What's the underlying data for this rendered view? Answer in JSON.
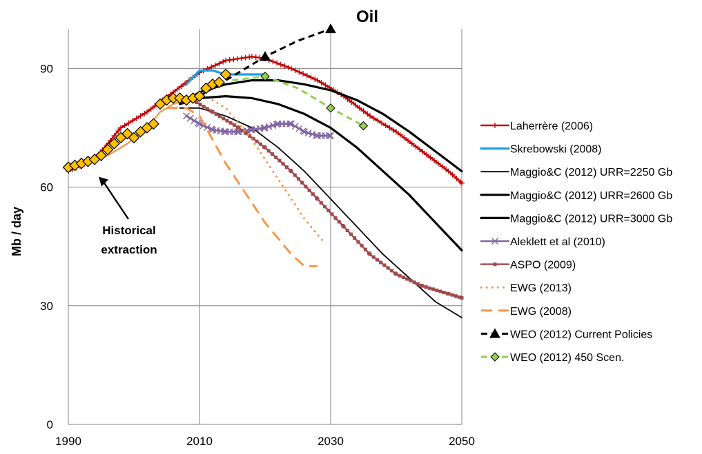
{
  "chart_data": {
    "type": "line",
    "title": "Oil",
    "xlabel": "",
    "ylabel": "Mb / day",
    "xlim": [
      1990,
      2050
    ],
    "ylim": [
      0,
      100
    ],
    "x_ticks": [
      1990,
      2010,
      2030,
      2050
    ],
    "y_ticks": [
      0,
      30,
      60,
      90
    ],
    "grid": "major, both axes",
    "legend_position": "right",
    "annotation": {
      "lines": [
        "Historical",
        "extraction"
      ],
      "target": [
        1994,
        64
      ]
    },
    "series": [
      {
        "name": "Laherrère (2006)",
        "color": "#c00000",
        "style": "solid-plus",
        "x": [
          1990,
          1994,
          1998,
          2002,
          2006,
          2010,
          2014,
          2018,
          2020,
          2024,
          2028,
          2032,
          2036,
          2040,
          2044,
          2048,
          2050
        ],
        "y": [
          64,
          67,
          75,
          79,
          84,
          89,
          92,
          93,
          92.5,
          90,
          87,
          83,
          78,
          74,
          69,
          64,
          61
        ]
      },
      {
        "name": "Skrebowski (2008)",
        "color": "#1ba1e2",
        "style": "solid-thick",
        "x": [
          2008,
          2010,
          2012,
          2014,
          2016,
          2018,
          2020
        ],
        "y": [
          86,
          89.5,
          89.5,
          88.5,
          88.5,
          88.5,
          88.5
        ]
      },
      {
        "name": "Maggio&C (2012) URR=2250 Gb",
        "color": "#000000",
        "style": "solid-thin",
        "x": [
          2007,
          2010,
          2014,
          2018,
          2022,
          2026,
          2030,
          2034,
          2038,
          2042,
          2046,
          2050
        ],
        "y": [
          80,
          80,
          78,
          75,
          70,
          64,
          57,
          50,
          43,
          37,
          31,
          27
        ]
      },
      {
        "name": "Maggio&C (2012) URR=2600 Gb",
        "color": "#000000",
        "style": "solid-thick",
        "x": [
          2007,
          2010,
          2014,
          2018,
          2022,
          2026,
          2030,
          2034,
          2038,
          2042,
          2046,
          2050
        ],
        "y": [
          81,
          82.5,
          83,
          82.5,
          81,
          78.5,
          75,
          70,
          64,
          58,
          51,
          44
        ]
      },
      {
        "name": "Maggio&C (2012) URR=3000 Gb",
        "color": "#000000",
        "style": "solid-thick",
        "x": [
          2008,
          2010,
          2014,
          2018,
          2022,
          2026,
          2030,
          2034,
          2038,
          2042,
          2046,
          2050
        ],
        "y": [
          82,
          84,
          86,
          87,
          87,
          86,
          84.5,
          82,
          78.5,
          74,
          69,
          64
        ]
      },
      {
        "name": "Aleklett et al (2010)",
        "color": "#8064a2",
        "style": "solid-x",
        "x": [
          2008,
          2010,
          2012,
          2014,
          2016,
          2018,
          2020,
          2022,
          2024,
          2026,
          2028,
          2030
        ],
        "y": [
          78,
          76,
          74.5,
          74,
          74,
          74.5,
          75,
          76,
          76,
          74,
          73,
          73
        ]
      },
      {
        "name": "ASPO (2009)",
        "color": "#a0484b",
        "style": "solid-square",
        "x": [
          2009,
          2012,
          2016,
          2020,
          2024,
          2028,
          2032,
          2036,
          2040,
          2044,
          2048,
          2050
        ],
        "y": [
          82,
          79,
          75,
          70,
          64,
          57,
          50,
          43,
          38,
          35,
          33,
          32
        ]
      },
      {
        "name": "EWG (2013)",
        "color": "#f79646",
        "style": "dotted",
        "x": [
          2012,
          2014,
          2016,
          2018,
          2020,
          2022,
          2024,
          2026,
          2028,
          2029
        ],
        "y": [
          82,
          80,
          76,
          72,
          67,
          62,
          57,
          52,
          48,
          46
        ]
      },
      {
        "name": "EWG (2008)",
        "color": "#f79646",
        "style": "dashed-long",
        "x": [
          2005,
          2008,
          2010,
          2012,
          2014,
          2016,
          2018,
          2020,
          2022,
          2024,
          2026,
          2028
        ],
        "y": [
          80,
          80,
          78,
          72,
          66,
          61,
          56,
          51,
          47,
          43,
          40,
          40
        ]
      },
      {
        "name": "WEO (2012) Current Policies",
        "color": "#000000",
        "style": "dashed-triangle",
        "x": [
          2010,
          2015,
          2020,
          2025,
          2030
        ],
        "y": [
          83,
          88,
          93,
          97,
          100
        ],
        "markers_x": [
          2020,
          2030
        ],
        "markers_y": [
          93,
          100
        ]
      },
      {
        "name": "WEO (2012) 450 Scen.",
        "color": "#92d050",
        "style": "dashed-diamond",
        "x": [
          2015,
          2020,
          2025,
          2030,
          2035
        ],
        "y": [
          87,
          88,
          85,
          80,
          75.5
        ],
        "markers_x": [
          2020,
          2030,
          2035
        ],
        "markers_y": [
          88,
          80,
          75.5
        ]
      },
      {
        "name": "Historical extraction",
        "legend": false,
        "color": "#ffc000",
        "style": "diamond-markers",
        "x": [
          1990,
          1991,
          1992,
          1993,
          1994,
          1995,
          1996,
          1997,
          1998,
          1999,
          2000,
          2001,
          2002,
          2003,
          2004,
          2005,
          2006,
          2007,
          2008,
          2009,
          2010,
          2011,
          2012,
          2013,
          2014
        ],
        "y": [
          65,
          65.5,
          66,
          66.5,
          67,
          68,
          69.5,
          71,
          72.5,
          73.5,
          72.5,
          74,
          75,
          76,
          81,
          82,
          82.5,
          82.5,
          82,
          82.5,
          83,
          85,
          86,
          86.5,
          88.5
        ]
      },
      {
        "name": "Historical (orange line)",
        "legend": false,
        "color": "#f79646",
        "style": "solid",
        "x": [
          1990,
          1993,
          1996,
          1999,
          2002,
          2004,
          2006,
          2008
        ],
        "y": [
          66,
          66,
          68,
          71,
          75,
          79,
          81,
          82
        ]
      }
    ]
  }
}
